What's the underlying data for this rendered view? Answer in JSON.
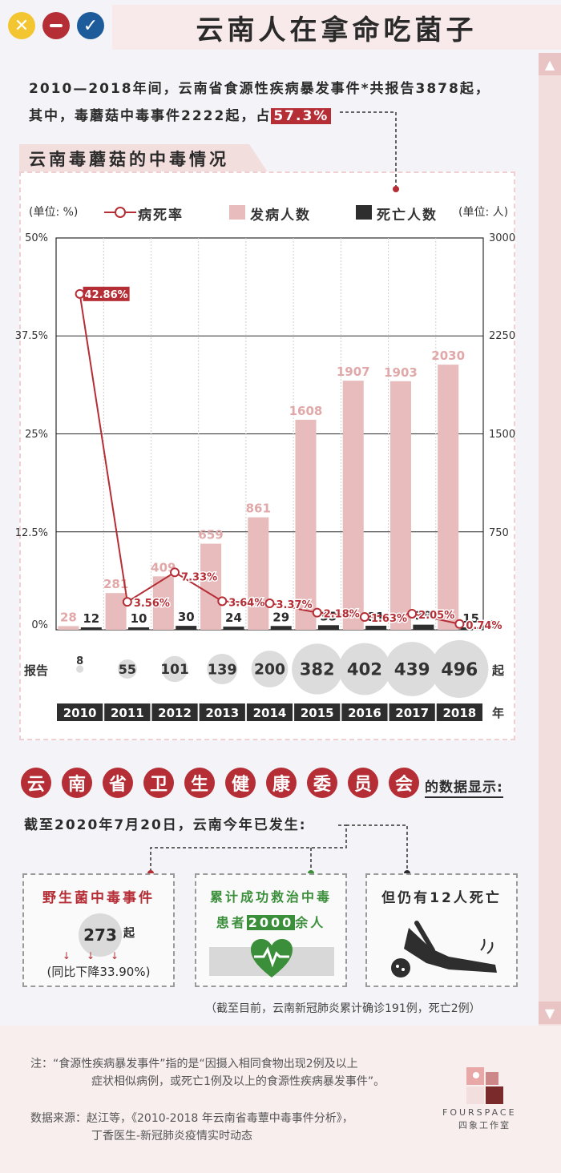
{
  "header": {
    "title": "云南人在拿命吃菌子"
  },
  "intro": {
    "line1": "2010—2018年间，云南省食源性疾病暴发事件*共报告3878起，",
    "line2_prefix": "其中，毒蘑菇中毒事件2222起，占",
    "line2_highlight": "57.3%"
  },
  "section_title": "云南毒蘑菇的中毒情况",
  "legend": {
    "left_unit": "(单位: %)",
    "rate": "病死率",
    "cases": "发病人数",
    "deaths": "死亡人数",
    "right_unit": "(单位: 人)"
  },
  "chart_data": {
    "type": "bar",
    "categories": [
      "2010",
      "2011",
      "2012",
      "2013",
      "2014",
      "2015",
      "2016",
      "2017",
      "2018"
    ],
    "series": [
      {
        "name": "发病人数",
        "values": [
          28,
          281,
          409,
          659,
          861,
          1608,
          1907,
          1903,
          2030
        ],
        "axis": "right"
      },
      {
        "name": "死亡人数",
        "values": [
          12,
          10,
          30,
          24,
          29,
          35,
          31,
          39,
          15
        ],
        "axis": "right"
      },
      {
        "name": "病死率",
        "type": "line",
        "values": [
          42.86,
          3.56,
          7.33,
          3.64,
          3.37,
          2.18,
          1.63,
          2.05,
          0.74
        ],
        "labels": [
          "42.86%",
          "3.56%",
          "7.33%",
          "3.64%",
          "3.37%",
          "2.18%",
          "1.63%",
          "2.05%",
          "0.74%"
        ],
        "axis": "left"
      }
    ],
    "reports": {
      "label": "报告",
      "unit": "起",
      "values": [
        8,
        55,
        101,
        139,
        200,
        382,
        402,
        439,
        496
      ]
    },
    "year_suffix": "年",
    "y_left": {
      "ticks": [
        "50%",
        "37.5%",
        "25%",
        "12.5%",
        "0%"
      ],
      "ylim": [
        0,
        50
      ]
    },
    "y_right": {
      "ticks": [
        "3000",
        "2250",
        "1500",
        "750",
        "0"
      ],
      "ylim": [
        0,
        3000
      ]
    },
    "colors": {
      "cases": "#e8bcbc",
      "deaths": "#2e2e2e",
      "rate": "#b52d35",
      "case_label": "#e0a8a8"
    }
  },
  "health_commission": {
    "chars": [
      "云",
      "南",
      "省",
      "卫",
      "生",
      "健",
      "康",
      "委",
      "员",
      "会"
    ],
    "suffix": "的数据显示:"
  },
  "deadline": "截至2020年7月20日，云南今年已发生:",
  "cards": {
    "wild": {
      "title": "野生菌中毒事件",
      "count": "273",
      "unit": "起",
      "note": "(同比下降33.90%)"
    },
    "rescued": {
      "title_line1": "累计成功救治中毒",
      "prefix": "患者",
      "highlight": "2000",
      "suffix": "余人"
    },
    "deaths": {
      "title": "但仍有12人死亡"
    }
  },
  "covid_note": "（截至目前，云南新冠肺炎累计确诊191例，死亡2例）",
  "footer": {
    "note_line1": "注：“食源性疾病暴发事件”指的是“因摄入相同食物出现2例及以上",
    "note_line2": "症状相似病例，或死亡1例及以上的食源性疾病暴发事件”。",
    "source_line1": "数据来源：赵江等，《2010-2018 年云南省毒蕈中毒事件分析》，",
    "source_line2": "丁香医生-新冠肺炎疫情实时动态",
    "brand_en": "FOURSPACE",
    "brand_cn": "四象工作室"
  },
  "icons": [
    "close-icon",
    "minus-icon",
    "check-icon",
    "arrow-up-icon",
    "arrow-down-icon",
    "heartbeat-icon",
    "fallen-person-icon",
    "brand-logo-icon"
  ]
}
